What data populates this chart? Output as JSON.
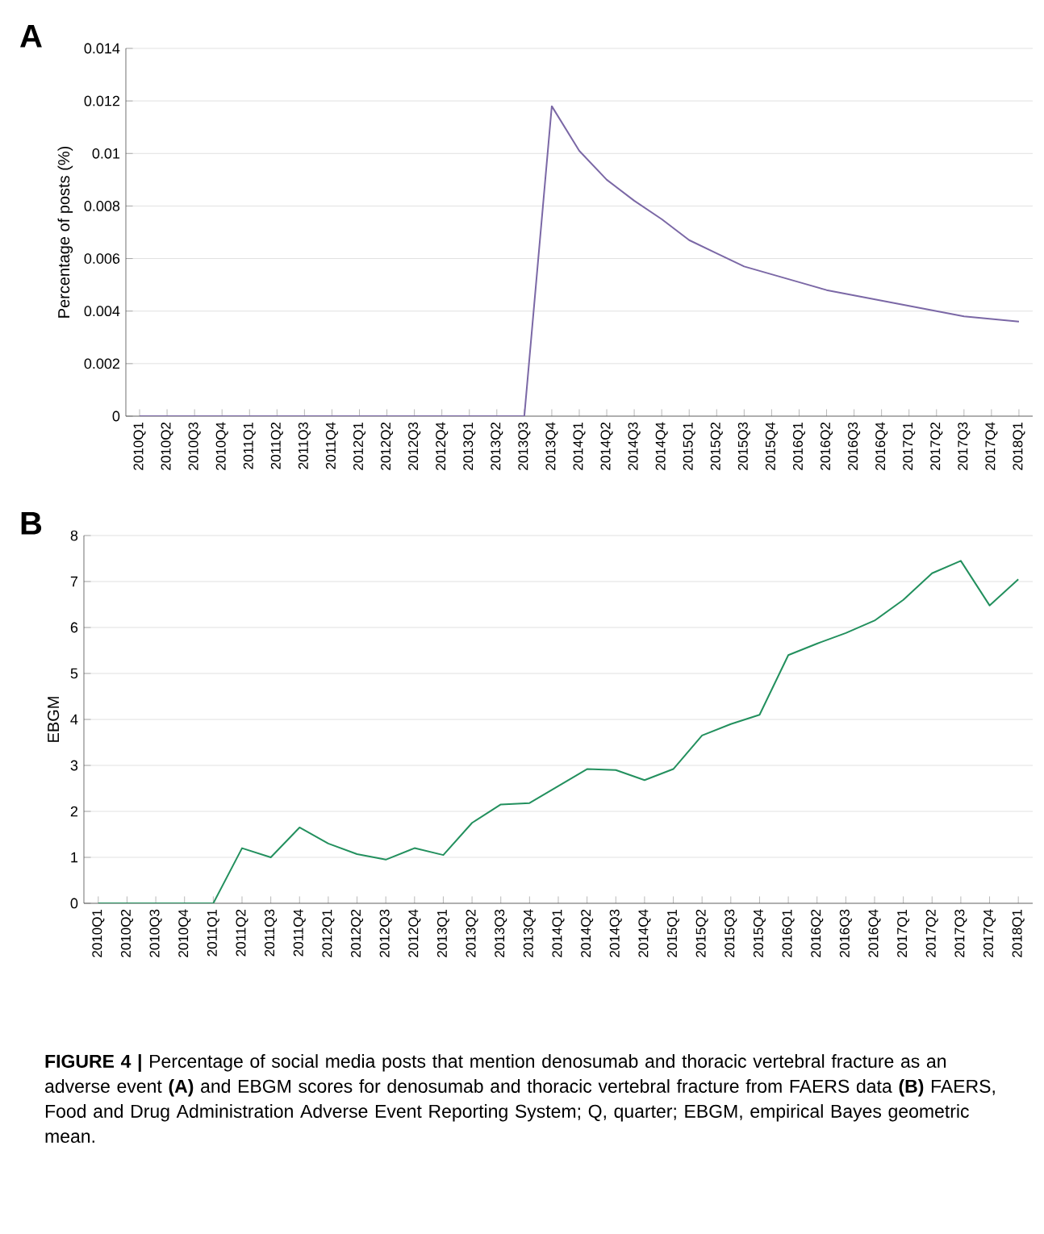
{
  "chart_data": [
    {
      "type": "line",
      "title": "A",
      "ylabel": "Percentage of posts (%)",
      "categories": [
        "2010Q1",
        "2010Q2",
        "2010Q3",
        "2010Q4",
        "2011Q1",
        "2011Q2",
        "2011Q3",
        "2011Q4",
        "2012Q1",
        "2012Q2",
        "2012Q3",
        "2012Q4",
        "2013Q1",
        "2013Q2",
        "2013Q3",
        "2013Q4",
        "2014Q1",
        "2014Q2",
        "2014Q3",
        "2014Q4",
        "2015Q1",
        "2015Q2",
        "2015Q3",
        "2015Q4",
        "2016Q1",
        "2016Q2",
        "2016Q3",
        "2016Q4",
        "2017Q1",
        "2017Q2",
        "2017Q3",
        "2017Q4",
        "2018Q1"
      ],
      "series": [
        {
          "color": "#7b68a6",
          "values": [
            0,
            0,
            0,
            0,
            0,
            0,
            0,
            0,
            0,
            0,
            0,
            0,
            0,
            0,
            0,
            0.0118,
            0.0101,
            0.009,
            0.0082,
            0.0075,
            0.0067,
            0.0062,
            0.0057,
            0.0054,
            0.0051,
            0.0048,
            0.0046,
            0.0044,
            0.0042,
            0.004,
            0.0038,
            0.0037,
            0.0036
          ]
        }
      ],
      "ylim": [
        0,
        0.014
      ],
      "yticks": [
        0,
        0.002,
        0.004,
        0.006,
        0.008,
        0.01,
        0.012,
        0.014
      ],
      "grid": "y"
    },
    {
      "type": "line",
      "title": "B",
      "ylabel": "EBGM",
      "categories": [
        "2010Q1",
        "2010Q2",
        "2010Q3",
        "2010Q4",
        "2011Q1",
        "2011Q2",
        "2011Q3",
        "2011Q4",
        "2012Q1",
        "2012Q2",
        "2012Q3",
        "2012Q4",
        "2013Q1",
        "2013Q2",
        "2013Q3",
        "2013Q4",
        "2014Q1",
        "2014Q2",
        "2014Q3",
        "2014Q4",
        "2015Q1",
        "2015Q2",
        "2015Q3",
        "2015Q4",
        "2016Q1",
        "2016Q2",
        "2016Q3",
        "2016Q4",
        "2017Q1",
        "2017Q2",
        "2017Q3",
        "2017Q4",
        "2018Q1"
      ],
      "series": [
        {
          "color": "#23905e",
          "values": [
            0,
            0,
            0,
            0,
            0,
            1.2,
            1.0,
            1.65,
            1.3,
            1.07,
            0.95,
            1.2,
            1.05,
            1.75,
            2.15,
            2.18,
            2.55,
            2.92,
            2.9,
            2.68,
            2.92,
            3.65,
            3.9,
            4.1,
            5.4,
            5.65,
            5.88,
            6.15,
            6.6,
            7.18,
            7.45,
            6.48,
            7.05
          ]
        }
      ],
      "ylim": [
        0,
        8
      ],
      "yticks": [
        0,
        1,
        2,
        3,
        4,
        5,
        6,
        7,
        8
      ],
      "grid": "y",
      "annotations": [
        "**FIGURE 4 |** Percentage of social media posts that mention denosumab and thoracic vertebral fracture as an adverse event **(A)** and EBGM scores for denosumab and thoracic vertebral fracture from FAERS data **(B)** FAERS, Food and Drug Administration Adverse Event Reporting System; Q, quarter; EBGM, empirical Bayes geometric mean."
      ]
    }
  ]
}
